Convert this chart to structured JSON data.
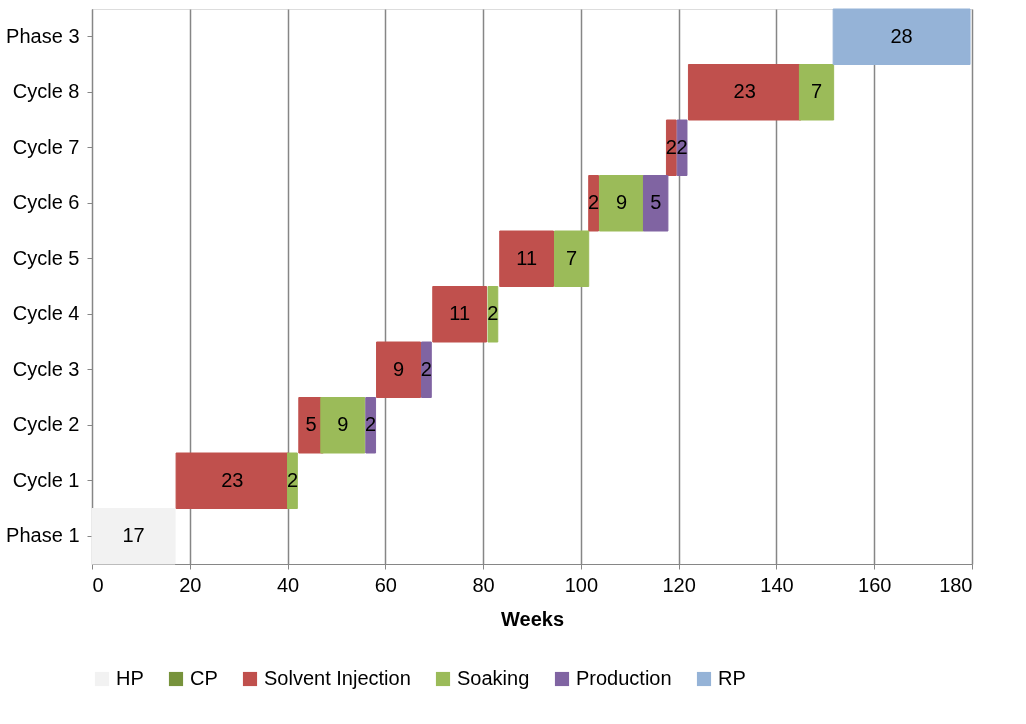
{
  "chart_data": {
    "type": "bar",
    "orientation": "horizontal",
    "xlabel": "Weeks",
    "categories": [
      "Phase 3",
      "Cycle 8",
      "Cycle 7",
      "Cycle 6",
      "Cycle 5",
      "Cycle 4",
      "Cycle 3",
      "Cycle 2",
      "Cycle 1",
      "Phase 1"
    ],
    "series": [
      {
        "name": "HP",
        "color": "#f2f2f2",
        "values": [
          null,
          null,
          null,
          null,
          null,
          null,
          null,
          null,
          null,
          17
        ],
        "base": [
          null,
          null,
          null,
          null,
          null,
          null,
          null,
          null,
          null,
          0
        ]
      },
      {
        "name": "CP",
        "color": "#77933c",
        "values": [
          null,
          null,
          null,
          null,
          null,
          null,
          null,
          null,
          null,
          null
        ]
      },
      {
        "name": "Solvent Injection",
        "color": "#c0504d",
        "values": [
          null,
          23,
          2,
          2,
          11,
          11,
          9,
          5,
          23,
          null
        ],
        "base": [
          null,
          122,
          117.5,
          101.6,
          83.4,
          69.7,
          58.2,
          42.3,
          17.2,
          null
        ]
      },
      {
        "name": "Soaking",
        "color": "#9bbb59",
        "values": [
          null,
          7,
          null,
          9,
          7,
          2,
          null,
          9,
          2,
          null
        ],
        "base": [
          null,
          144.7,
          null,
          103.8,
          94.6,
          81,
          null,
          46.8,
          40,
          null
        ]
      },
      {
        "name": "Production",
        "color": "#8064a2",
        "values": [
          null,
          null,
          2,
          5,
          null,
          null,
          2,
          2,
          null,
          null
        ],
        "base": [
          null,
          null,
          119.7,
          112.8,
          null,
          null,
          67.4,
          56,
          null,
          null
        ]
      },
      {
        "name": "RP",
        "color": "#95b3d7",
        "values": [
          28,
          null,
          null,
          null,
          null,
          null,
          null,
          null,
          null,
          null
        ],
        "base": [
          151.6,
          null,
          null,
          null,
          null,
          null,
          null,
          null,
          null,
          null
        ]
      }
    ],
    "xlim": [
      0,
      180
    ],
    "xticks": [
      0,
      20,
      40,
      60,
      80,
      100,
      120,
      140,
      160,
      180
    ],
    "grid": "x",
    "legend": "bottom",
    "data_labels": true
  }
}
